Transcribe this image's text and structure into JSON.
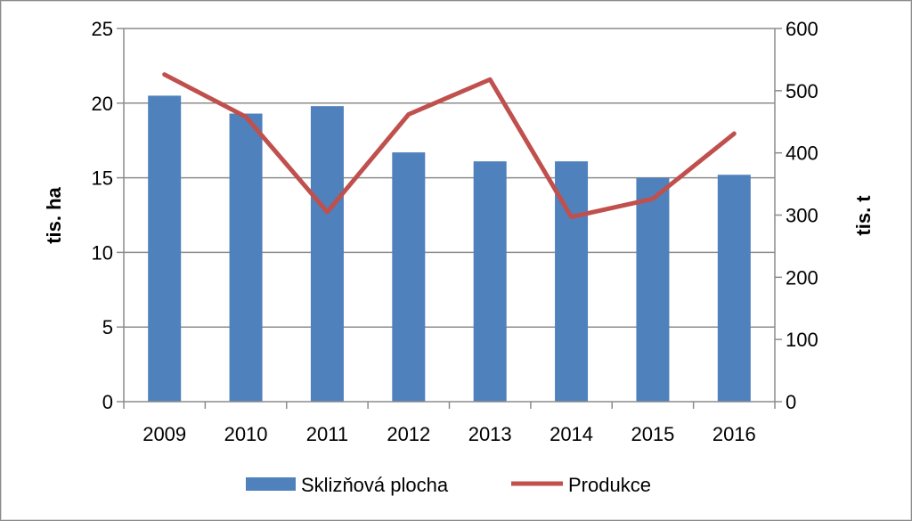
{
  "chart_data": {
    "type": "bar+line",
    "categories": [
      "2009",
      "2010",
      "2011",
      "2012",
      "2013",
      "2014",
      "2015",
      "2016"
    ],
    "series": [
      {
        "name": "Sklizňová plocha",
        "type": "bar",
        "axis": "left",
        "color": "#4f81bd",
        "values": [
          20.5,
          19.3,
          19.8,
          16.7,
          16.1,
          16.1,
          15.0,
          15.2
        ]
      },
      {
        "name": "Produkce",
        "type": "line",
        "axis": "right",
        "color": "#c0504d",
        "values": [
          526,
          458,
          305,
          462,
          518,
          297,
          326,
          431
        ]
      }
    ],
    "ylabel": "tis. ha",
    "y2label": "tis. t",
    "ylim": [
      0,
      25
    ],
    "y2lim": [
      0,
      600
    ],
    "yticks": [
      "0",
      "5",
      "10",
      "15",
      "20",
      "25"
    ],
    "y2ticks": [
      "0",
      "100",
      "200",
      "300",
      "400",
      "500",
      "600"
    ],
    "grid": true,
    "legend_position": "bottom"
  }
}
